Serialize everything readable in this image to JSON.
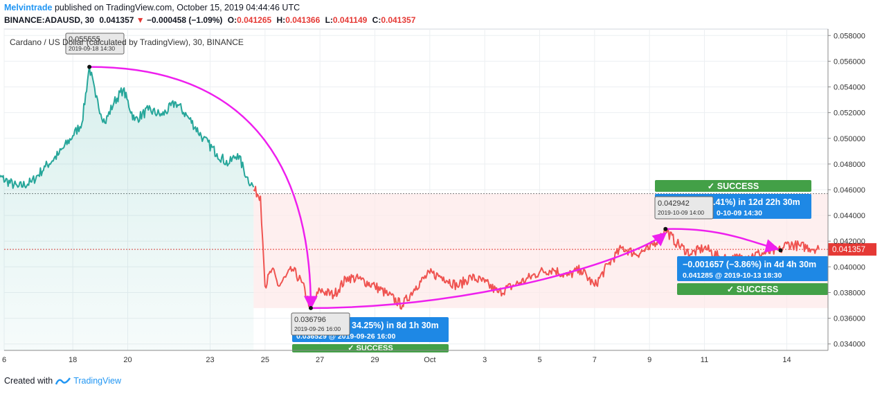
{
  "header": {
    "publisher": "Melvintrade",
    "published_text": "published on TradingView.com, October 15, 2019 04:44:46 UTC",
    "symbol": "BINANCE:ADAUSD, 30",
    "last": "0.041357",
    "change": "−0.000458 (−1.09%)",
    "o_label": "O:",
    "o": "0.041265",
    "h_label": "H:",
    "h": "0.041366",
    "l_label": "L:",
    "l": "0.041149",
    "c_label": "C:",
    "c": "0.041357"
  },
  "footer": {
    "created_with": "Created with",
    "brand": "TradingView"
  },
  "colors": {
    "green": "#26a69a",
    "red": "#ef5350",
    "magenta": "#ee1fee",
    "blue": "#1e88e5",
    "success": "#43a047",
    "price_line": "#e53935"
  },
  "chart_data": {
    "type": "line",
    "title": "Cardano / US Dollar (calculated by TradingView), 30, BINANCE",
    "x_ticks": [
      "6",
      "18",
      "20",
      "23",
      "25",
      "27",
      "29",
      "Oct",
      "3",
      "5",
      "7",
      "9",
      "11",
      "14"
    ],
    "y_ticks": [
      "0.058000",
      "0.056000",
      "0.054000",
      "0.052000",
      "0.050000",
      "0.048000",
      "0.046000",
      "0.044000",
      "0.042000",
      "0.040000",
      "0.038000",
      "0.036000",
      "0.034000"
    ],
    "ylim": [
      0.0335,
      0.0585
    ],
    "last_price_label": "0.041357",
    "series": [
      {
        "color": "#26a69a",
        "x": [
          "2019-09-15 00:00",
          "2019-09-16 00:00",
          "2019-09-16 12:00",
          "2019-09-17 00:00",
          "2019-09-17 12:00",
          "2019-09-18 00:00",
          "2019-09-18 08:00",
          "2019-09-18 14:30",
          "2019-09-18 20:00",
          "2019-09-19 04:00",
          "2019-09-19 12:00",
          "2019-09-19 20:00",
          "2019-09-20 06:00",
          "2019-09-20 18:00",
          "2019-09-21 06:00",
          "2019-09-21 18:00",
          "2019-09-22 06:00",
          "2019-09-22 18:00",
          "2019-09-23 06:00",
          "2019-09-23 16:00",
          "2019-09-24 00:00",
          "2019-09-24 08:00",
          "2019-09-24 14:00"
        ],
        "y": [
          0.0474,
          0.0462,
          0.0466,
          0.0478,
          0.0488,
          0.0502,
          0.0512,
          0.0556,
          0.0532,
          0.0512,
          0.0528,
          0.0538,
          0.0514,
          0.0522,
          0.0518,
          0.0528,
          0.0515,
          0.05,
          0.0488,
          0.048,
          0.0488,
          0.047,
          0.0462
        ]
      },
      {
        "color": "#ef5350",
        "x": [
          "2019-09-24 14:00",
          "2019-09-24 20:00",
          "2019-09-24 22:00",
          "2019-09-25 00:00",
          "2019-09-25 06:00",
          "2019-09-25 12:00",
          "2019-09-25 18:00",
          "2019-09-26 00:00",
          "2019-09-26 08:00",
          "2019-09-26 16:00",
          "2019-09-27 00:00",
          "2019-09-27 12:00",
          "2019-09-28 00:00",
          "2019-09-28 12:00",
          "2019-09-29 00:00",
          "2019-09-29 12:00",
          "2019-09-30 00:00",
          "2019-09-30 12:00",
          "2019-10-01 00:00",
          "2019-10-01 12:00",
          "2019-10-02 00:00",
          "2019-10-02 12:00",
          "2019-10-03 00:00",
          "2019-10-03 12:00",
          "2019-10-04 00:00",
          "2019-10-04 12:00",
          "2019-10-05 00:00",
          "2019-10-05 12:00",
          "2019-10-06 00:00",
          "2019-10-06 12:00",
          "2019-10-07 00:00",
          "2019-10-07 12:00",
          "2019-10-08 00:00",
          "2019-10-08 12:00",
          "2019-10-09 00:00",
          "2019-10-09 14:00",
          "2019-10-10 00:00",
          "2019-10-10 12:00",
          "2019-10-11 00:00",
          "2019-10-11 12:00",
          "2019-10-12 00:00",
          "2019-10-12 12:00",
          "2019-10-13 00:00",
          "2019-10-13 18:30",
          "2019-10-14 00:00",
          "2019-10-14 12:00",
          "2019-10-15 04:00"
        ],
        "y": [
          0.046,
          0.0455,
          0.042,
          0.0385,
          0.0398,
          0.0385,
          0.0392,
          0.0398,
          0.0388,
          0.0368,
          0.0382,
          0.0378,
          0.0392,
          0.039,
          0.0385,
          0.0378,
          0.037,
          0.0385,
          0.0395,
          0.0392,
          0.0385,
          0.0392,
          0.0388,
          0.038,
          0.0385,
          0.039,
          0.0396,
          0.0398,
          0.0393,
          0.0398,
          0.0385,
          0.0402,
          0.0415,
          0.041,
          0.0414,
          0.0429,
          0.0418,
          0.041,
          0.0415,
          0.0408,
          0.0406,
          0.0408,
          0.041,
          0.0413,
          0.0418,
          0.0416,
          0.0414
        ]
      }
    ],
    "annotations": [
      {
        "id": "peak",
        "point_price": "0.055555",
        "point_time": "2019-09-18 14:30",
        "label_price": "0.055555",
        "label_time": "2019-09-18 14:30"
      },
      {
        "id": "low",
        "point_price": "0.036796",
        "point_time": "2019-09-26 16:00",
        "label_price": "0.036796",
        "label_time": "2019-09-26 16:00",
        "measure_text": "34.25%) in 8d 1h 30m",
        "measure_sub": "0.036529 @ 2019-09-26  16:00",
        "success": "✓ SUCCESS"
      },
      {
        "id": "high2",
        "point_price": "0.042942",
        "point_time": "2019-10-09 14:00",
        "label_price": "0.042942",
        "label_time": "2019-10-09 14:00",
        "measure_text": ".41%) in 12d 22h 30m",
        "measure_sub": "0-10-09  14:30",
        "success": "✓ SUCCESS"
      },
      {
        "id": "end",
        "point_price": "0.041285",
        "point_time": "2019-10-13 18:30",
        "measure_text": "−0.001657 (−3.86%) in 4d 4h 30m",
        "measure_sub": "0.041285 @ 2019-10-13  18:30",
        "success": "✓ SUCCESS"
      }
    ]
  }
}
